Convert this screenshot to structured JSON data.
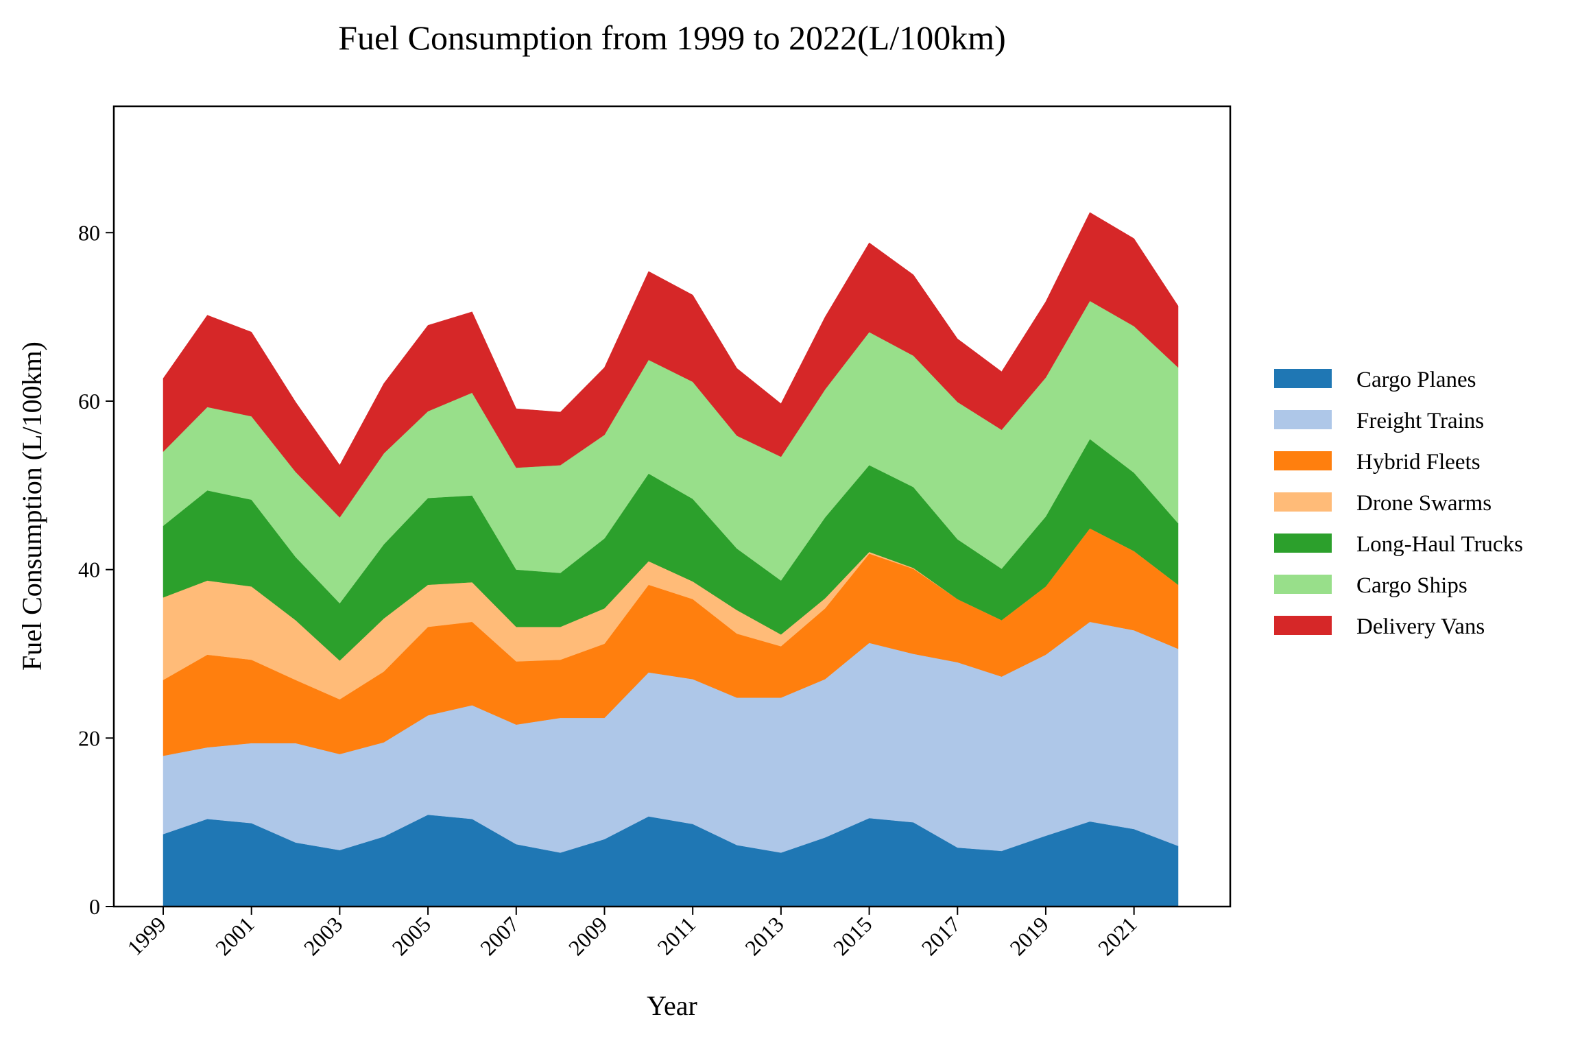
{
  "chart_data": {
    "type": "area",
    "stacked": true,
    "title": "Fuel Consumption from 1999 to 2022(L/100km)",
    "xlabel": "Year",
    "ylabel": "Fuel Consumption (L/100km)",
    "x": [
      1999,
      2000,
      2001,
      2002,
      2003,
      2004,
      2005,
      2006,
      2007,
      2008,
      2009,
      2010,
      2011,
      2012,
      2013,
      2014,
      2015,
      2016,
      2017,
      2018,
      2019,
      2020,
      2021,
      2022
    ],
    "xticks": [
      "1999",
      "2001",
      "2003",
      "2005",
      "2007",
      "2009",
      "2011",
      "2013",
      "2015",
      "2017",
      "2019",
      "2021"
    ],
    "xlim": [
      1999,
      2023
    ],
    "ylim": [
      0,
      95
    ],
    "yticks": [
      0,
      20,
      40,
      60,
      80
    ],
    "grid": false,
    "legend_position": "center-right-outside",
    "series": [
      {
        "name": "Cargo Planes",
        "color": "#1f77b4",
        "values": [
          8.6,
          10.4,
          9.9,
          7.6,
          6.7,
          8.3,
          10.9,
          10.4,
          7.4,
          6.4,
          8.0,
          10.7,
          9.8,
          7.3,
          6.4,
          8.2,
          10.5,
          10.0,
          7.0,
          6.6,
          8.4,
          10.1,
          9.2,
          7.2
        ]
      },
      {
        "name": "Freight Trains",
        "color": "#aec7e8",
        "values": [
          9.3,
          8.5,
          9.5,
          11.8,
          11.4,
          11.2,
          11.8,
          13.5,
          14.2,
          16.0,
          14.4,
          17.1,
          17.2,
          17.5,
          18.4,
          18.8,
          20.8,
          20.0,
          22.0,
          20.7,
          21.5,
          23.7,
          23.6,
          23.4
        ]
      },
      {
        "name": "Hybrid Fleets",
        "color": "#ff7f0e",
        "values": [
          9.0,
          11.0,
          9.9,
          7.5,
          6.5,
          8.4,
          10.5,
          9.9,
          7.5,
          6.9,
          8.8,
          10.4,
          9.5,
          7.6,
          6.1,
          8.4,
          10.6,
          10.1,
          7.5,
          6.7,
          8.1,
          11.1,
          9.4,
          7.6
        ]
      },
      {
        "name": "Drone Swarms",
        "color": "#ffbb78",
        "values": [
          9.8,
          8.8,
          8.7,
          7.1,
          4.6,
          6.3,
          5.0,
          4.7,
          4.1,
          3.9,
          4.2,
          2.8,
          2.1,
          2.8,
          1.4,
          1.2,
          0.2,
          0.1,
          0.0,
          0.0,
          0.0,
          0.0,
          0.0,
          0.0
        ]
      },
      {
        "name": "Long-Haul Trucks",
        "color": "#2ca02c",
        "values": [
          8.5,
          10.7,
          10.3,
          7.5,
          6.8,
          8.8,
          10.3,
          10.3,
          6.8,
          6.4,
          8.3,
          10.4,
          9.8,
          7.3,
          6.4,
          9.6,
          10.3,
          9.6,
          7.1,
          6.1,
          8.3,
          10.6,
          9.3,
          7.3
        ]
      },
      {
        "name": "Cargo Ships",
        "color": "#98df8a",
        "values": [
          8.8,
          9.9,
          9.9,
          10.1,
          10.2,
          10.8,
          10.3,
          12.2,
          12.1,
          12.8,
          12.3,
          13.5,
          13.9,
          13.4,
          14.7,
          15.2,
          15.8,
          15.6,
          16.3,
          16.5,
          16.5,
          16.4,
          17.4,
          18.5
        ]
      },
      {
        "name": "Delivery Vans",
        "color": "#d62728",
        "values": [
          8.7,
          10.9,
          10.0,
          8.3,
          6.2,
          8.3,
          10.2,
          9.6,
          7.0,
          6.3,
          8.0,
          10.5,
          10.3,
          8.0,
          6.3,
          8.6,
          10.6,
          9.6,
          7.5,
          6.9,
          9.0,
          10.5,
          10.4,
          7.3
        ]
      }
    ]
  }
}
